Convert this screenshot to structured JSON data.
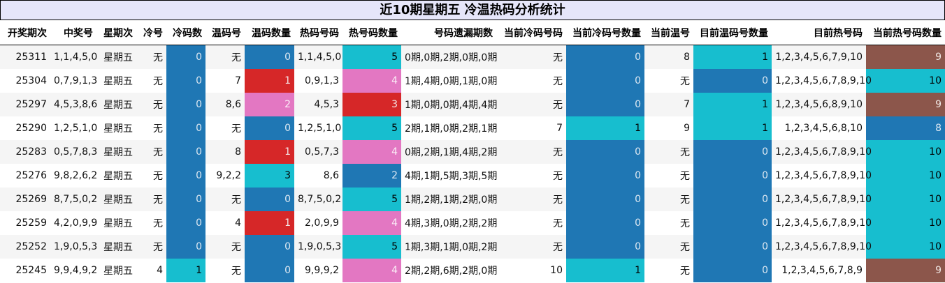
{
  "title": "近10期星期五 冷温热码分析统计",
  "colors": {
    "blue": "#1f77b4",
    "cyan": "#17becf",
    "red": "#d62728",
    "pink": "#e377c2",
    "brown": "#8c564b"
  },
  "columns": [
    "开奖期次",
    "中奖号",
    "星期次",
    "冷号",
    "冷码数",
    "温码号",
    "温码数量",
    "热码号码",
    "热号码数量",
    "号码遗漏期数",
    "当前冷码号码",
    "当前冷码号数量",
    "当前温号",
    "目前温码号数量",
    "目前热号码",
    "当前热号码数量"
  ],
  "color_maps": {
    "4": {
      "0": "blue",
      "1": "cyan"
    },
    "6": {
      "0": "blue",
      "1": "red",
      "2": "pink",
      "3": "cyan"
    },
    "8": {
      "2": "blue",
      "3": "red",
      "4": "pink",
      "5": "cyan"
    },
    "11": {
      "0": "blue",
      "1": "cyan"
    },
    "13": {
      "0": "blue",
      "1": "cyan"
    },
    "15": {
      "8": "blue",
      "9": "brown",
      "10": "cyan"
    }
  },
  "rows": [
    [
      "25311",
      "1,1,4,5,0",
      "星期五",
      "无",
      "0",
      "无",
      "0",
      "1,1,4,5,0",
      "5",
      "0期,0期,2期,0期,0期",
      "无",
      "0",
      "8",
      "1",
      "1,2,3,4,5,6,7,9,10",
      "9"
    ],
    [
      "25304",
      "0,7,9,1,3",
      "星期五",
      "无",
      "0",
      "7",
      "1",
      "0,9,1,3",
      "4",
      "1期,4期,0期,1期,0期",
      "无",
      "0",
      "无",
      "0",
      "1,2,3,4,5,6,7,8,9,10",
      "10"
    ],
    [
      "25297",
      "4,5,3,8,6",
      "星期五",
      "无",
      "0",
      "8,6",
      "2",
      "4,5,3",
      "3",
      "1期,0期,0期,4期,4期",
      "无",
      "0",
      "7",
      "1",
      "1,2,3,4,5,6,8,9,10",
      "9"
    ],
    [
      "25290",
      "1,2,5,1,0",
      "星期五",
      "无",
      "0",
      "无",
      "0",
      "1,2,5,1,0",
      "5",
      "2期,1期,0期,2期,1期",
      "7",
      "1",
      "9",
      "1",
      "1,2,3,4,5,6,8,10",
      "8"
    ],
    [
      "25283",
      "0,5,7,8,3",
      "星期五",
      "无",
      "0",
      "8",
      "1",
      "0,5,7,3",
      "4",
      "0期,2期,1期,4期,2期",
      "无",
      "0",
      "无",
      "0",
      "1,2,3,4,5,6,7,8,9,10",
      "10"
    ],
    [
      "25276",
      "9,8,2,6,2",
      "星期五",
      "无",
      "0",
      "9,2,2",
      "3",
      "8,6",
      "2",
      "4期,1期,5期,3期,5期",
      "无",
      "0",
      "无",
      "0",
      "1,2,3,4,5,6,7,8,9,10",
      "10"
    ],
    [
      "25269",
      "8,7,5,0,2",
      "星期五",
      "无",
      "0",
      "无",
      "0",
      "8,7,5,0,2",
      "5",
      "1期,2期,1期,2期,0期",
      "无",
      "0",
      "无",
      "0",
      "1,2,3,4,5,6,7,8,9,10",
      "10"
    ],
    [
      "25259",
      "4,2,0,9,9",
      "星期五",
      "无",
      "0",
      "4",
      "1",
      "2,0,9,9",
      "4",
      "4期,3期,0期,2期,2期",
      "无",
      "0",
      "无",
      "0",
      "1,2,3,4,5,6,7,8,9,10",
      "10"
    ],
    [
      "25252",
      "1,9,0,5,3",
      "星期五",
      "无",
      "0",
      "无",
      "0",
      "1,9,0,5,3",
      "5",
      "1期,3期,1期,0期,2期",
      "无",
      "0",
      "无",
      "0",
      "1,2,3,4,5,6,7,8,9,10",
      "10"
    ],
    [
      "25245",
      "9,9,4,9,2",
      "星期五",
      "4",
      "1",
      "无",
      "0",
      "9,9,9,2",
      "4",
      "2期,2期,6期,2期,0期",
      "10",
      "1",
      "无",
      "0",
      "1,2,3,4,5,6,7,8,9",
      "9"
    ]
  ]
}
